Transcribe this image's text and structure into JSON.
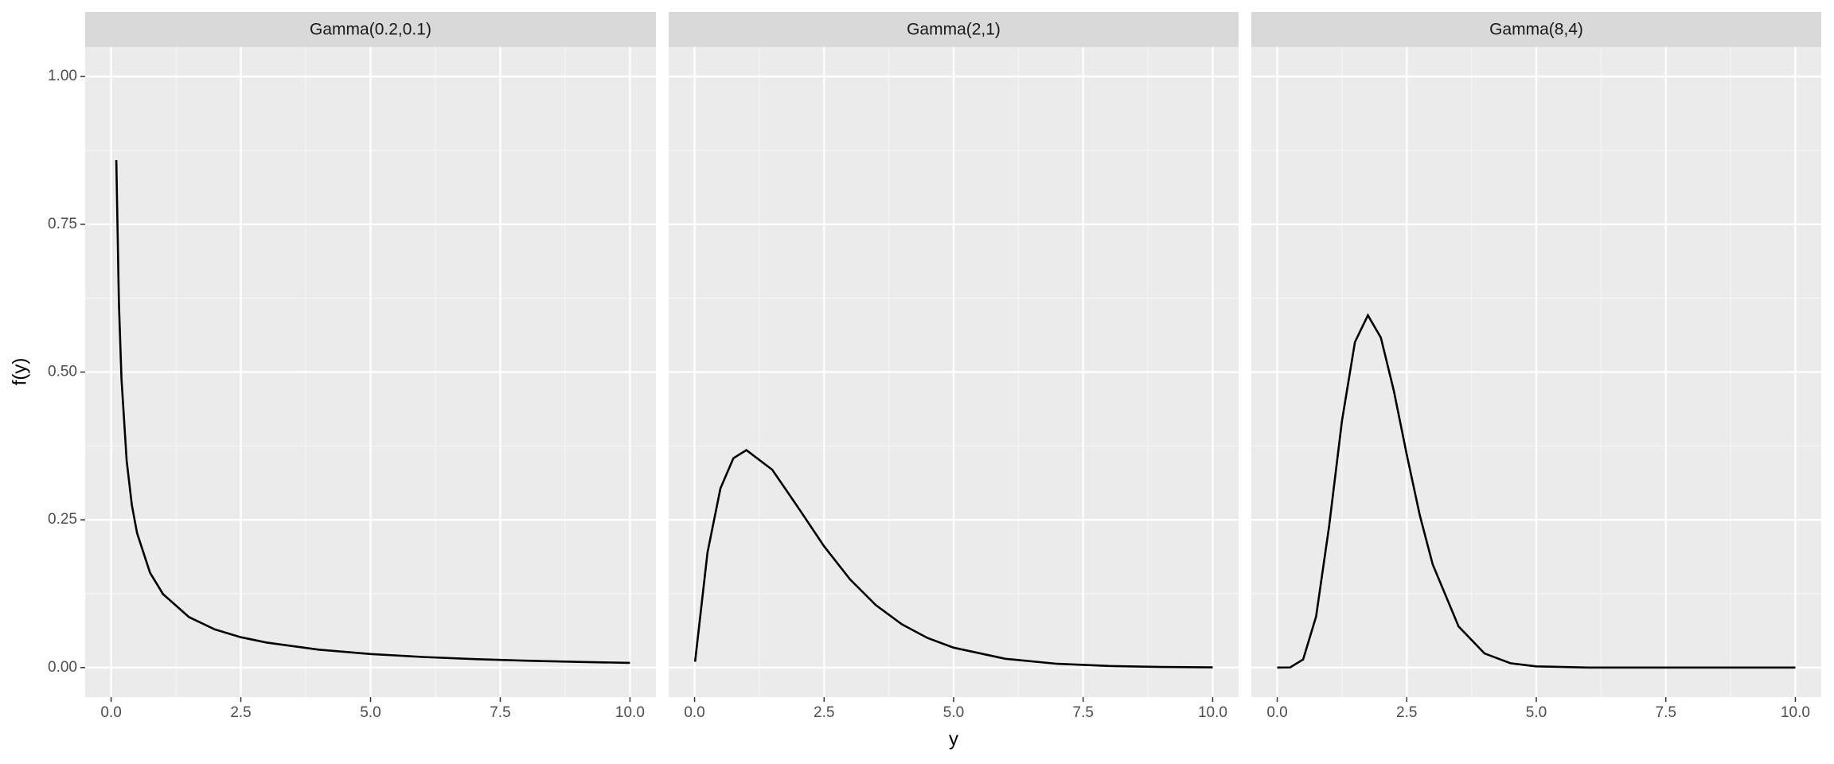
{
  "chart_data": [
    {
      "type": "line",
      "title": "Gamma(0.2,0.1)",
      "x_label": "y",
      "y_label": "f(y)",
      "color": "#000000",
      "x": [
        0.1,
        0.15,
        0.2,
        0.3,
        0.4,
        0.5,
        0.75,
        1,
        1.5,
        2,
        2.5,
        3,
        4,
        5,
        6,
        7,
        8,
        9,
        10
      ],
      "values": [
        0.8586,
        0.6176,
        0.4882,
        0.3495,
        0.2749,
        0.2276,
        0.1605,
        0.1244,
        0.0855,
        0.0646,
        0.0514,
        0.0423,
        0.0304,
        0.023,
        0.018,
        0.0144,
        0.0117,
        0.0096,
        0.008
      ],
      "xlim": [
        -0.5,
        10.5
      ],
      "xticks": [
        {
          "value": 0,
          "label": "0.0"
        },
        2.5,
        {
          "value": 5,
          "label": "5.0"
        },
        7.5,
        {
          "value": 10,
          "label": "10.0"
        }
      ],
      "ylim": [
        -0.05,
        1.05
      ],
      "yticks": [
        {
          "value": 0,
          "label": "0.00"
        },
        0.25,
        {
          "value": 0.5,
          "label": "0.50"
        },
        0.75,
        {
          "value": 1,
          "label": "1.00"
        }
      ]
    },
    {
      "type": "line",
      "title": "Gamma(2,1)",
      "color": "#000000",
      "x": [
        0.01,
        0.25,
        0.5,
        0.75,
        1,
        1.5,
        2,
        2.5,
        3,
        3.5,
        4,
        4.5,
        5,
        6,
        7,
        8,
        9,
        10
      ],
      "values": [
        0.0099,
        0.1947,
        0.3033,
        0.3543,
        0.3679,
        0.3347,
        0.2707,
        0.2052,
        0.1494,
        0.1057,
        0.0733,
        0.05,
        0.0337,
        0.0149,
        0.0064,
        0.0027,
        0.0011,
        0.00045
      ],
      "xlim": [
        -0.5,
        10.5
      ],
      "xticks": [
        {
          "value": 0,
          "label": "0.0"
        },
        2.5,
        {
          "value": 5,
          "label": "5.0"
        },
        7.5,
        {
          "value": 10,
          "label": "10.0"
        }
      ],
      "ylim": [
        -0.05,
        1.05
      ],
      "yticks": [
        0,
        0.25,
        0.5,
        0.75,
        1
      ]
    },
    {
      "type": "line",
      "title": "Gamma(8,4)",
      "color": "#000000",
      "x": [
        0,
        0.25,
        0.5,
        0.75,
        1,
        1.25,
        1.5,
        1.75,
        2,
        2.25,
        2.5,
        2.75,
        3,
        3.5,
        4,
        4.5,
        5,
        6,
        7,
        8,
        9,
        10
      ],
      "values": [
        0,
        0.0003,
        0.0138,
        0.0864,
        0.2382,
        0.4178,
        0.5507,
        0.596,
        0.5583,
        0.4685,
        0.3603,
        0.2583,
        0.1747,
        0.0696,
        0.024,
        0.0074,
        0.0021,
        0.0001,
        0,
        0,
        0,
        0
      ],
      "xlim": [
        -0.5,
        10.5
      ],
      "xticks": [
        {
          "value": 0,
          "label": "0.0"
        },
        2.5,
        {
          "value": 5,
          "label": "5.0"
        },
        7.5,
        {
          "value": 10,
          "label": "10.0"
        }
      ],
      "ylim": [
        -0.05,
        1.05
      ],
      "yticks": [
        0,
        0.25,
        0.5,
        0.75,
        1
      ]
    }
  ]
}
